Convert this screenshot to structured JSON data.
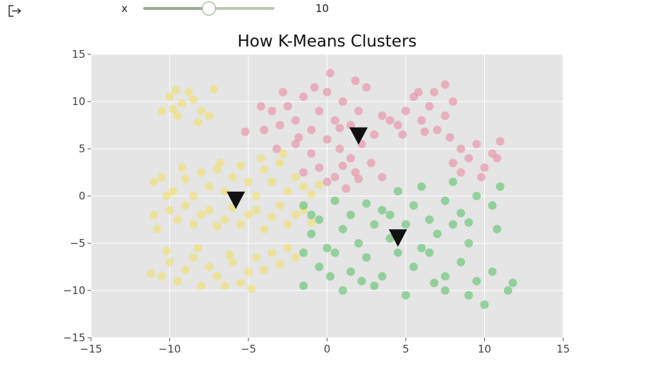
{
  "controls": {
    "slider_label": "x",
    "slider_value": "10",
    "slider_min": 0,
    "slider_max": 20,
    "slider_current": 10
  },
  "chart_data": {
    "type": "scatter",
    "title": "How K-Means Clusters",
    "xlabel": "",
    "ylabel": "",
    "xlim": [
      -15,
      15
    ],
    "ylim": [
      -15,
      15
    ],
    "x_ticks": [
      -15,
      -10,
      -5,
      0,
      5,
      10,
      15
    ],
    "y_ticks": [
      -15,
      -10,
      -5,
      0,
      5,
      10,
      15
    ],
    "x_tick_labels": [
      "−15",
      "−10",
      "−5",
      "0",
      "5",
      "10",
      "15"
    ],
    "y_tick_labels": [
      "−15",
      "−10",
      "−5",
      "0",
      "5",
      "10",
      "15"
    ],
    "grid": true,
    "background": "#e5e5e5",
    "clusters": [
      {
        "color": "#f0e06a",
        "points": [
          [
            -10.0,
            10.5
          ],
          [
            -9.6,
            11.2
          ],
          [
            -9.2,
            9.8
          ],
          [
            -8.5,
            10.2
          ],
          [
            -8.0,
            9.0
          ],
          [
            -7.5,
            8.5
          ],
          [
            -8.8,
            11.0
          ],
          [
            -9.8,
            9.2
          ],
          [
            -7.2,
            11.3
          ],
          [
            -10.5,
            9.0
          ],
          [
            -8.2,
            7.8
          ],
          [
            -9.5,
            8.5
          ],
          [
            -10.5,
            2.0
          ],
          [
            -9.8,
            0.5
          ],
          [
            -9.0,
            1.8
          ],
          [
            -8.5,
            0.0
          ],
          [
            -8.0,
            2.5
          ],
          [
            -7.5,
            1.0
          ],
          [
            -7.0,
            2.8
          ],
          [
            -6.5,
            0.5
          ],
          [
            -6.0,
            2.0
          ],
          [
            -5.5,
            3.2
          ],
          [
            -5.0,
            1.5
          ],
          [
            -4.5,
            0.0
          ],
          [
            -4.0,
            2.8
          ],
          [
            -3.5,
            1.5
          ],
          [
            -3.0,
            3.5
          ],
          [
            -2.5,
            0.5
          ],
          [
            -2.0,
            2.0
          ],
          [
            -1.5,
            1.0
          ],
          [
            -1.0,
            0.2
          ],
          [
            -0.5,
            1.2
          ],
          [
            -10.0,
            -1.5
          ],
          [
            -9.5,
            -2.5
          ],
          [
            -9.0,
            -1.0
          ],
          [
            -8.5,
            -3.0
          ],
          [
            -8.0,
            -2.0
          ],
          [
            -7.5,
            -1.5
          ],
          [
            -7.0,
            -3.2
          ],
          [
            -6.5,
            -2.5
          ],
          [
            -6.0,
            -1.2
          ],
          [
            -5.5,
            -3.0
          ],
          [
            -5.0,
            -2.0
          ],
          [
            -4.5,
            -1.5
          ],
          [
            -4.0,
            -3.5
          ],
          [
            -3.5,
            -2.2
          ],
          [
            -3.0,
            -1.0
          ],
          [
            -2.5,
            -3.0
          ],
          [
            -2.0,
            -2.0
          ],
          [
            -1.5,
            -1.5
          ],
          [
            -1.0,
            -2.8
          ],
          [
            -10.8,
            -3.5
          ],
          [
            -10.2,
            0.0
          ],
          [
            -11.0,
            1.5
          ],
          [
            -9.2,
            3.0
          ],
          [
            -6.8,
            3.5
          ],
          [
            -4.2,
            4.0
          ],
          [
            -2.8,
            4.5
          ],
          [
            -11.0,
            -2.0
          ],
          [
            -10.5,
            -8.5
          ],
          [
            -10.0,
            -7.0
          ],
          [
            -9.5,
            -9.0
          ],
          [
            -9.0,
            -7.8
          ],
          [
            -8.5,
            -6.5
          ],
          [
            -8.0,
            -9.5
          ],
          [
            -7.5,
            -7.5
          ],
          [
            -7.0,
            -8.5
          ],
          [
            -6.5,
            -9.5
          ],
          [
            -6.0,
            -7.0
          ],
          [
            -5.5,
            -9.2
          ],
          [
            -5.0,
            -8.0
          ],
          [
            -4.5,
            -6.5
          ],
          [
            -4.0,
            -7.8
          ],
          [
            -3.5,
            -6.0
          ],
          [
            -3.0,
            -7.2
          ],
          [
            -2.5,
            -5.5
          ],
          [
            -2.0,
            -6.5
          ],
          [
            -10.2,
            -5.8
          ],
          [
            -11.2,
            -8.2
          ],
          [
            -8.2,
            -5.5
          ],
          [
            -4.8,
            -9.8
          ],
          [
            -6.2,
            -6.2
          ]
        ]
      },
      {
        "color": "#e88aa2",
        "points": [
          [
            -3.5,
            9.0
          ],
          [
            -3.0,
            7.5
          ],
          [
            -2.5,
            9.5
          ],
          [
            -2.0,
            8.0
          ],
          [
            -1.5,
            10.5
          ],
          [
            -1.0,
            7.0
          ],
          [
            -0.5,
            9.0
          ],
          [
            0.0,
            11.0
          ],
          [
            0.5,
            8.0
          ],
          [
            1.0,
            10.0
          ],
          [
            1.5,
            7.5
          ],
          [
            2.0,
            9.0
          ],
          [
            2.5,
            11.5
          ],
          [
            -4.0,
            7.0
          ],
          [
            -3.2,
            5.0
          ],
          [
            -2.0,
            5.5
          ],
          [
            -1.0,
            4.5
          ],
          [
            0.0,
            6.0
          ],
          [
            0.8,
            5.0
          ],
          [
            1.5,
            4.0
          ],
          [
            2.2,
            5.5
          ],
          [
            3.0,
            6.5
          ],
          [
            -0.5,
            3.0
          ],
          [
            0.5,
            2.0
          ],
          [
            1.0,
            3.2
          ],
          [
            1.8,
            2.5
          ],
          [
            0.0,
            1.5
          ],
          [
            1.2,
            0.8
          ],
          [
            2.0,
            1.8
          ],
          [
            -1.5,
            2.5
          ],
          [
            2.8,
            3.5
          ],
          [
            3.5,
            2.0
          ],
          [
            -4.2,
            9.5
          ],
          [
            -2.8,
            11.0
          ],
          [
            -0.8,
            11.5
          ],
          [
            1.8,
            12.2
          ],
          [
            0.2,
            13.0
          ],
          [
            -5.2,
            6.8
          ],
          [
            4.0,
            8.0
          ],
          [
            4.5,
            7.5
          ],
          [
            5.0,
            9.0
          ],
          [
            5.5,
            10.5
          ],
          [
            6.0,
            8.0
          ],
          [
            6.5,
            9.5
          ],
          [
            7.0,
            7.0
          ],
          [
            7.5,
            8.5
          ],
          [
            8.0,
            10.0
          ],
          [
            4.8,
            6.5
          ],
          [
            6.2,
            6.8
          ],
          [
            7.8,
            6.2
          ],
          [
            6.8,
            11.0
          ],
          [
            7.5,
            11.8
          ],
          [
            5.8,
            11.0
          ],
          [
            8.0,
            3.5
          ],
          [
            8.5,
            5.0
          ],
          [
            9.0,
            4.0
          ],
          [
            9.5,
            5.5
          ],
          [
            10.0,
            3.0
          ],
          [
            10.5,
            4.5
          ],
          [
            11.0,
            5.8
          ],
          [
            8.5,
            2.5
          ],
          [
            9.8,
            2.0
          ],
          [
            10.8,
            4.0
          ],
          [
            3.5,
            8.5
          ],
          [
            0.8,
            7.2
          ],
          [
            -1.8,
            6.2
          ]
        ]
      },
      {
        "color": "#5cc06a",
        "points": [
          [
            -1.5,
            -1.0
          ],
          [
            -0.5,
            -2.5
          ],
          [
            0.5,
            -0.5
          ],
          [
            1.5,
            -2.0
          ],
          [
            2.5,
            -0.8
          ],
          [
            3.5,
            -1.5
          ],
          [
            4.5,
            0.5
          ],
          [
            5.5,
            -1.0
          ],
          [
            6.5,
            -2.5
          ],
          [
            7.5,
            -0.5
          ],
          [
            8.5,
            -1.8
          ],
          [
            9.5,
            0.0
          ],
          [
            10.5,
            -1.0
          ],
          [
            11.0,
            1.0
          ],
          [
            8.0,
            1.5
          ],
          [
            6.0,
            1.0
          ],
          [
            -1.0,
            -4.0
          ],
          [
            0.0,
            -5.5
          ],
          [
            1.0,
            -3.5
          ],
          [
            2.0,
            -5.0
          ],
          [
            3.0,
            -3.0
          ],
          [
            4.0,
            -4.5
          ],
          [
            5.0,
            -3.0
          ],
          [
            6.0,
            -5.5
          ],
          [
            7.0,
            -4.0
          ],
          [
            8.0,
            -3.0
          ],
          [
            9.0,
            -5.0
          ],
          [
            -1.5,
            -6.0
          ],
          [
            -0.5,
            -7.5
          ],
          [
            0.5,
            -6.0
          ],
          [
            1.5,
            -8.0
          ],
          [
            2.5,
            -6.5
          ],
          [
            3.5,
            -8.5
          ],
          [
            4.5,
            -6.0
          ],
          [
            5.5,
            -7.5
          ],
          [
            6.5,
            -6.0
          ],
          [
            7.5,
            -8.5
          ],
          [
            8.5,
            -7.0
          ],
          [
            9.5,
            -9.0
          ],
          [
            10.5,
            -8.0
          ],
          [
            11.5,
            -10.0
          ],
          [
            10.0,
            -11.5
          ],
          [
            1.0,
            -10.0
          ],
          [
            3.0,
            -9.5
          ],
          [
            5.0,
            -10.5
          ],
          [
            7.5,
            -10.0
          ],
          [
            -1.5,
            -9.5
          ],
          [
            -1.0,
            -2.0
          ],
          [
            4.0,
            -2.0
          ],
          [
            9.0,
            -2.8
          ],
          [
            10.8,
            -3.5
          ],
          [
            11.8,
            -9.2
          ],
          [
            9.0,
            -10.5
          ],
          [
            6.8,
            -9.2
          ],
          [
            2.2,
            -9.0
          ],
          [
            0.2,
            -8.5
          ]
        ]
      }
    ],
    "centroids": [
      [
        -5.8,
        -0.5
      ],
      [
        2.0,
        6.3
      ],
      [
        4.5,
        -4.5
      ]
    ],
    "centroid_color": "#111111",
    "centroid_marker": "down-triangle"
  },
  "icons": {
    "export": "export-icon"
  }
}
